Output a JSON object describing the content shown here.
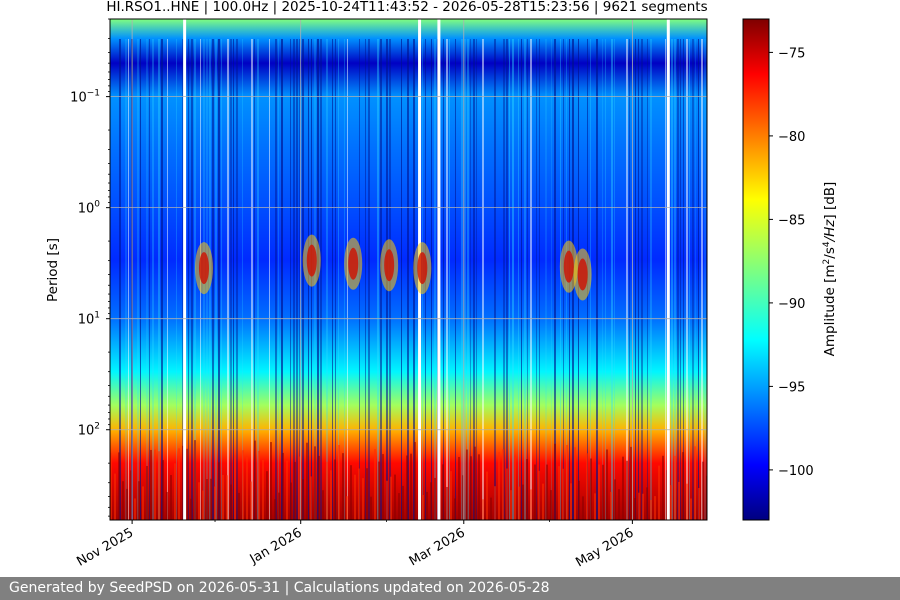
{
  "chart_data": {
    "type": "heatmap",
    "title": "HI.RSO1..HNE | 100.0Hz | 2025-10-24T11:43:52 - 2026-05-28T15:23:56 | 9621 segments",
    "ylabel": "Period [s]",
    "yscale": "log",
    "ylim": [
      0.02,
      650
    ],
    "y_inverted": true,
    "yticks": [
      0.1,
      1,
      10,
      100
    ],
    "ytick_labels": [
      "10^-1",
      "10^0",
      "10^1",
      "10^2"
    ],
    "xlim": [
      "2025-10-24",
      "2026-05-28"
    ],
    "xticks": [
      "2025-11-01",
      "2026-01-01",
      "2026-03-01",
      "2026-05-01"
    ],
    "xtick_labels": [
      "Nov 2025",
      "Jan 2026",
      "Mar 2026",
      "May 2026"
    ],
    "grid": true,
    "colormap": "jet",
    "colorbar": {
      "label_prefix": "Amplitude [m",
      "label_suffix": "] [dB]",
      "range": [
        -103,
        -73
      ],
      "ticks": [
        -75,
        -80,
        -85,
        -90,
        -95,
        -100
      ],
      "tick_labels": [
        "−75",
        "−80",
        "−85",
        "−90",
        "−95",
        "−100"
      ]
    },
    "data_gaps": [
      "2025-11-20",
      "2026-02-13",
      "2026-02-20",
      "2026-05-14"
    ],
    "profile": [
      {
        "period": 0.02,
        "db": -88
      },
      {
        "period": 0.03,
        "db": -95
      },
      {
        "period": 0.05,
        "db": -101
      },
      {
        "period": 0.1,
        "db": -95
      },
      {
        "period": 0.3,
        "db": -96
      },
      {
        "period": 1,
        "db": -97
      },
      {
        "period": 3,
        "db": -98
      },
      {
        "period": 10,
        "db": -96
      },
      {
        "period": 30,
        "db": -92
      },
      {
        "period": 60,
        "db": -87
      },
      {
        "period": 100,
        "db": -82
      },
      {
        "period": 200,
        "db": -77
      },
      {
        "period": 650,
        "db": -74
      }
    ],
    "microseism_bursts": [
      {
        "date": "2025-11-27",
        "period": 3.5
      },
      {
        "date": "2026-01-05",
        "period": 3
      },
      {
        "date": "2026-01-20",
        "period": 3.2
      },
      {
        "date": "2026-02-02",
        "period": 3.3
      },
      {
        "date": "2026-02-14",
        "period": 3.5
      },
      {
        "date": "2026-04-08",
        "period": 3.4
      },
      {
        "date": "2026-04-13",
        "period": 4
      }
    ]
  },
  "footer": {
    "text": "Generated by SeedPSD on 2026-05-31 | Calculations updated on 2026-05-28"
  }
}
